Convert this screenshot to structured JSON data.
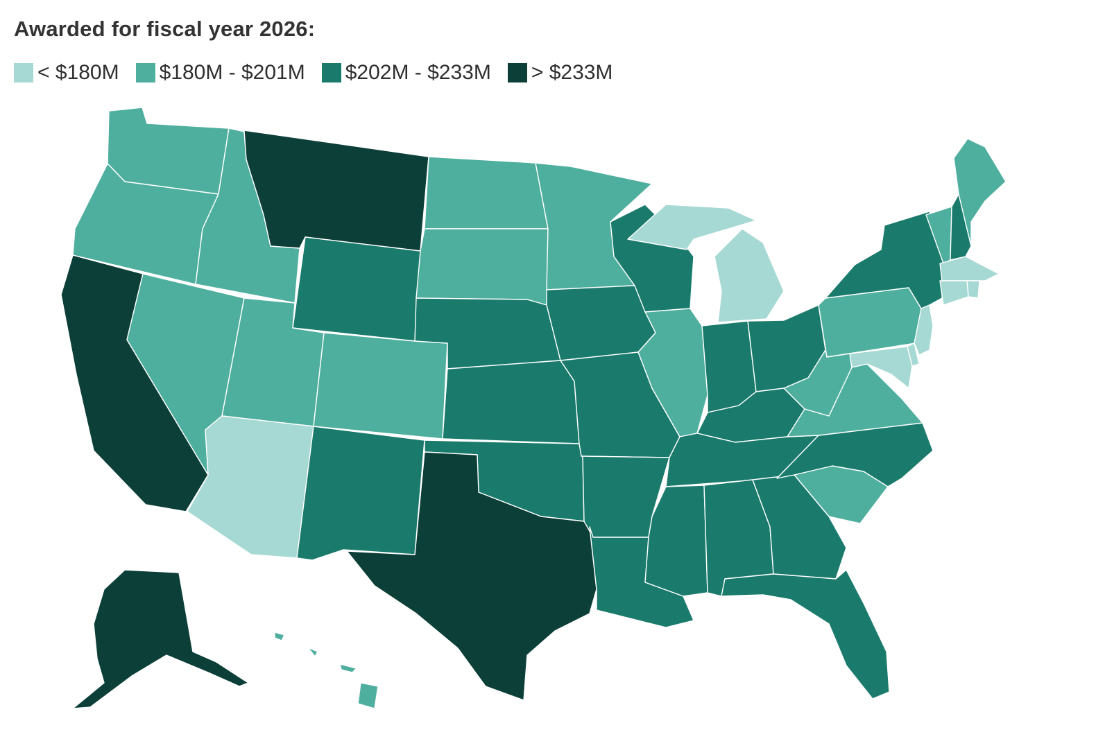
{
  "title": "Awarded for fiscal year 2026:",
  "colors": {
    "tier1": "#a6d9d3",
    "tier2": "#4faf9f",
    "tier3": "#1a7b6d",
    "tier4": "#0c3f38"
  },
  "legend": [
    {
      "label": "< $180M",
      "tier": "tier1"
    },
    {
      "label": "$180M - $201M",
      "tier": "tier2"
    },
    {
      "label": "$202M - $233M",
      "tier": "tier3"
    },
    {
      "label": "> $233M",
      "tier": "tier4"
    }
  ],
  "states": {
    "WA": "tier2",
    "OR": "tier2",
    "CA": "tier4",
    "NV": "tier2",
    "ID": "tier2",
    "MT": "tier4",
    "WY": "tier3",
    "UT": "tier2",
    "AZ": "tier1",
    "CO": "tier2",
    "NM": "tier3",
    "ND": "tier2",
    "SD": "tier2",
    "NE": "tier3",
    "KS": "tier3",
    "OK": "tier3",
    "TX": "tier4",
    "MN": "tier2",
    "IA": "tier3",
    "MO": "tier3",
    "AR": "tier3",
    "LA": "tier3",
    "WI": "tier3",
    "IL": "tier2",
    "MI": "tier1",
    "IN": "tier3",
    "OH": "tier3",
    "KY": "tier3",
    "TN": "tier3",
    "MS": "tier3",
    "AL": "tier3",
    "GA": "tier3",
    "FL": "tier3",
    "SC": "tier2",
    "NC": "tier3",
    "VA": "tier2",
    "WV": "tier2",
    "PA": "tier2",
    "NY": "tier3",
    "VT": "tier2",
    "NH": "tier3",
    "ME": "tier2",
    "MA": "tier1",
    "RI": "tier1",
    "CT": "tier1",
    "NJ": "tier1",
    "DE": "tier1",
    "MD": "tier1",
    "AK": "tier4",
    "HI": "tier2"
  }
}
